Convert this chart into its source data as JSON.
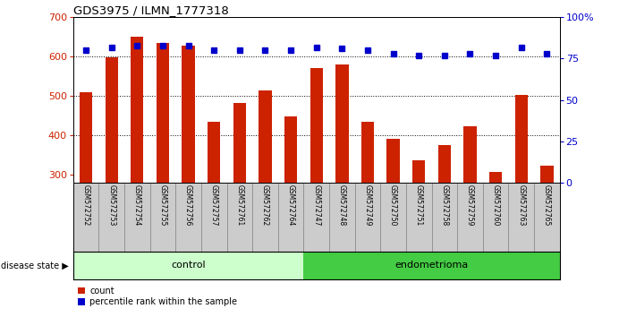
{
  "title": "GDS3975 / ILMN_1777318",
  "samples": [
    "GSM572752",
    "GSM572753",
    "GSM572754",
    "GSM572755",
    "GSM572756",
    "GSM572757",
    "GSM572761",
    "GSM572762",
    "GSM572764",
    "GSM572747",
    "GSM572748",
    "GSM572749",
    "GSM572750",
    "GSM572751",
    "GSM572758",
    "GSM572759",
    "GSM572760",
    "GSM572763",
    "GSM572765"
  ],
  "counts": [
    510,
    598,
    650,
    635,
    628,
    433,
    483,
    515,
    448,
    570,
    581,
    433,
    390,
    335,
    375,
    422,
    307,
    502,
    323
  ],
  "percentiles": [
    80,
    82,
    83,
    83,
    83,
    80,
    80,
    80,
    80,
    82,
    81,
    80,
    78,
    77,
    77,
    78,
    77,
    82,
    78
  ],
  "n_control": 9,
  "n_endometrioma": 10,
  "control_label": "control",
  "endometrioma_label": "endometrioma",
  "disease_state_label": "disease state",
  "ymin": 280,
  "ymax": 700,
  "yticks_left": [
    300,
    400,
    500,
    600,
    700
  ],
  "right_yticks": [
    0,
    25,
    50,
    75,
    100
  ],
  "bar_color": "#cc2200",
  "dot_color": "#0000cc",
  "control_bg": "#ccffcc",
  "endometrioma_bg": "#44cc44",
  "sample_bg": "#cccccc",
  "grid_lines": [
    400,
    500,
    600
  ],
  "legend_labels": [
    "count",
    "percentile rank within the sample"
  ]
}
